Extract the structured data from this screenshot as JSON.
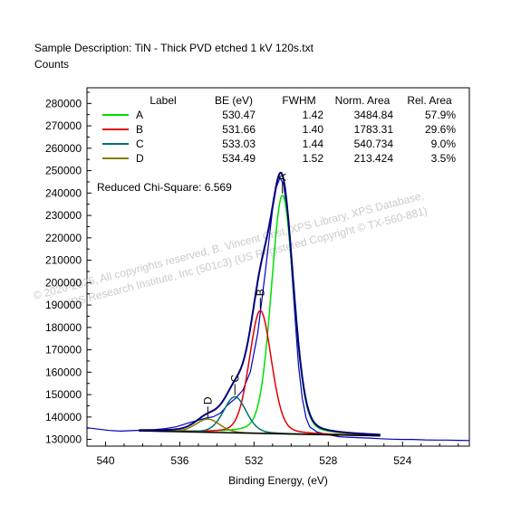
{
  "header": {
    "description": "Sample Description:  TiN - Thick PVD etched 1 kV 120s.txt",
    "counts_label": "Counts"
  },
  "watermark": {
    "line1": "© 2020-2025,  All copyrights reserved,   B. Vincent Crist,  XPS Library, XPS Database,",
    "line2": "XPS Research Institute, Inc (501c3)   (US Registered Copyright © TX-560-881)"
  },
  "chi_square": "Reduced Chi-Square: 6.569",
  "chart_data": {
    "type": "line",
    "xlabel": "Binding Energy, (eV)",
    "ylabel": "Counts",
    "xlim": [
      541.0,
      520.4
    ],
    "x_reversed": true,
    "ylim": [
      127000,
      287000
    ],
    "x_ticks": [
      540,
      536,
      532,
      528,
      524
    ],
    "y_ticks": [
      130000,
      140000,
      150000,
      160000,
      170000,
      180000,
      190000,
      200000,
      210000,
      220000,
      230000,
      240000,
      250000,
      260000,
      270000,
      280000
    ],
    "grid": false,
    "legend_placement": "top-left",
    "legend_headers": [
      "Label",
      "BE (eV)",
      "FWHM",
      "Norm. Area",
      "Rel. Area"
    ],
    "background_line": {
      "color": "#000000",
      "x": [
        538.2,
        525.2
      ],
      "y": [
        133800,
        131600
      ]
    },
    "peaks": [
      {
        "name": "A",
        "color": "#00e000",
        "be": "530.47",
        "fwhm": "1.42",
        "norm_area": "3484.84",
        "rel_area": "57.9%",
        "center": 530.47,
        "fwhm_value": 1.42,
        "height": 106500
      },
      {
        "name": "B",
        "color": "#e00000",
        "be": "531.66",
        "fwhm": "1.40",
        "norm_area": "1783.31",
        "rel_area": "29.6%",
        "center": 531.66,
        "fwhm_value": 1.4,
        "height": 54800
      },
      {
        "name": "C",
        "color": "#007070",
        "be": "533.03",
        "fwhm": "1.44",
        "norm_area": "540.734",
        "rel_area": "9.0%",
        "center": 533.03,
        "fwhm_value": 1.44,
        "height": 16100
      },
      {
        "name": "D",
        "color": "#808000",
        "be": "534.49",
        "fwhm": "1.52",
        "norm_area": "213.424",
        "rel_area": "3.5%",
        "center": 534.49,
        "fwhm_value": 1.52,
        "height": 5900
      }
    ],
    "envelope_color": "#00007a",
    "raw_data": {
      "color": "#0000c0",
      "x": [
        541.0,
        540.4,
        539.8,
        539.2,
        538.6,
        538.0,
        537.4,
        536.8,
        536.2,
        535.6,
        535.0,
        534.6,
        534.2,
        533.8,
        533.4,
        533.0,
        532.6,
        532.2,
        531.8,
        531.4,
        531.0,
        530.8,
        530.6,
        530.4,
        530.2,
        530.0,
        529.8,
        529.6,
        529.4,
        529.2,
        529.0,
        528.6,
        528.2,
        527.8,
        527.4,
        527.0,
        526.4,
        525.8,
        525.2,
        524.6,
        524.0,
        523.4,
        522.8,
        522.2,
        521.6,
        521.0,
        520.4
      ],
      "y": [
        135200,
        134600,
        134000,
        133700,
        133900,
        134100,
        134300,
        134800,
        135600,
        137200,
        138600,
        139500,
        140100,
        141800,
        145600,
        148300,
        152000,
        160200,
        177500,
        204500,
        233000,
        242600,
        246800,
        243800,
        230500,
        209000,
        185600,
        162700,
        148400,
        139800,
        135600,
        133300,
        132500,
        131800,
        131200,
        131000,
        130800,
        130600,
        130300,
        130100,
        130000,
        130000,
        129800,
        129700,
        129700,
        129600,
        129500
      ]
    }
  }
}
